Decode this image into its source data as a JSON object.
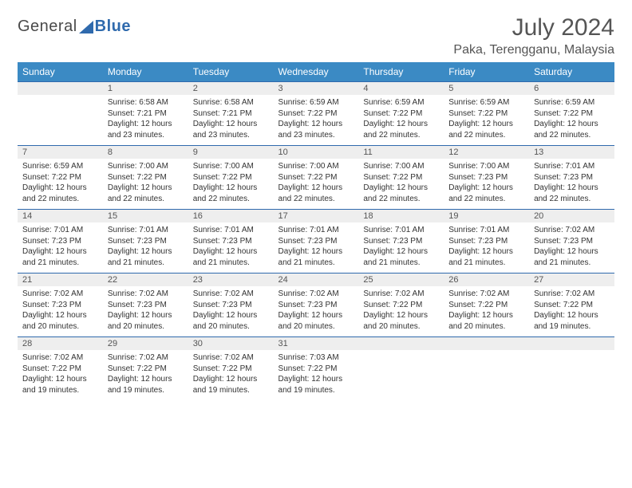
{
  "brand": {
    "part1": "General",
    "part2": "Blue"
  },
  "title": "July 2024",
  "location": "Paka, Terengganu, Malaysia",
  "colors": {
    "header_bg": "#3b8ac4",
    "row_separator": "#2f6aad",
    "daynum_bg": "#eeeeee",
    "text": "#333333",
    "title_text": "#555555"
  },
  "day_headers": [
    "Sunday",
    "Monday",
    "Tuesday",
    "Wednesday",
    "Thursday",
    "Friday",
    "Saturday"
  ],
  "weeks": [
    [
      null,
      {
        "n": "1",
        "sr": "6:58 AM",
        "ss": "7:21 PM",
        "dl": "12 hours and 23 minutes."
      },
      {
        "n": "2",
        "sr": "6:58 AM",
        "ss": "7:21 PM",
        "dl": "12 hours and 23 minutes."
      },
      {
        "n": "3",
        "sr": "6:59 AM",
        "ss": "7:22 PM",
        "dl": "12 hours and 23 minutes."
      },
      {
        "n": "4",
        "sr": "6:59 AM",
        "ss": "7:22 PM",
        "dl": "12 hours and 22 minutes."
      },
      {
        "n": "5",
        "sr": "6:59 AM",
        "ss": "7:22 PM",
        "dl": "12 hours and 22 minutes."
      },
      {
        "n": "6",
        "sr": "6:59 AM",
        "ss": "7:22 PM",
        "dl": "12 hours and 22 minutes."
      }
    ],
    [
      {
        "n": "7",
        "sr": "6:59 AM",
        "ss": "7:22 PM",
        "dl": "12 hours and 22 minutes."
      },
      {
        "n": "8",
        "sr": "7:00 AM",
        "ss": "7:22 PM",
        "dl": "12 hours and 22 minutes."
      },
      {
        "n": "9",
        "sr": "7:00 AM",
        "ss": "7:22 PM",
        "dl": "12 hours and 22 minutes."
      },
      {
        "n": "10",
        "sr": "7:00 AM",
        "ss": "7:22 PM",
        "dl": "12 hours and 22 minutes."
      },
      {
        "n": "11",
        "sr": "7:00 AM",
        "ss": "7:22 PM",
        "dl": "12 hours and 22 minutes."
      },
      {
        "n": "12",
        "sr": "7:00 AM",
        "ss": "7:23 PM",
        "dl": "12 hours and 22 minutes."
      },
      {
        "n": "13",
        "sr": "7:01 AM",
        "ss": "7:23 PM",
        "dl": "12 hours and 22 minutes."
      }
    ],
    [
      {
        "n": "14",
        "sr": "7:01 AM",
        "ss": "7:23 PM",
        "dl": "12 hours and 21 minutes."
      },
      {
        "n": "15",
        "sr": "7:01 AM",
        "ss": "7:23 PM",
        "dl": "12 hours and 21 minutes."
      },
      {
        "n": "16",
        "sr": "7:01 AM",
        "ss": "7:23 PM",
        "dl": "12 hours and 21 minutes."
      },
      {
        "n": "17",
        "sr": "7:01 AM",
        "ss": "7:23 PM",
        "dl": "12 hours and 21 minutes."
      },
      {
        "n": "18",
        "sr": "7:01 AM",
        "ss": "7:23 PM",
        "dl": "12 hours and 21 minutes."
      },
      {
        "n": "19",
        "sr": "7:01 AM",
        "ss": "7:23 PM",
        "dl": "12 hours and 21 minutes."
      },
      {
        "n": "20",
        "sr": "7:02 AM",
        "ss": "7:23 PM",
        "dl": "12 hours and 21 minutes."
      }
    ],
    [
      {
        "n": "21",
        "sr": "7:02 AM",
        "ss": "7:23 PM",
        "dl": "12 hours and 20 minutes."
      },
      {
        "n": "22",
        "sr": "7:02 AM",
        "ss": "7:23 PM",
        "dl": "12 hours and 20 minutes."
      },
      {
        "n": "23",
        "sr": "7:02 AM",
        "ss": "7:23 PM",
        "dl": "12 hours and 20 minutes."
      },
      {
        "n": "24",
        "sr": "7:02 AM",
        "ss": "7:23 PM",
        "dl": "12 hours and 20 minutes."
      },
      {
        "n": "25",
        "sr": "7:02 AM",
        "ss": "7:22 PM",
        "dl": "12 hours and 20 minutes."
      },
      {
        "n": "26",
        "sr": "7:02 AM",
        "ss": "7:22 PM",
        "dl": "12 hours and 20 minutes."
      },
      {
        "n": "27",
        "sr": "7:02 AM",
        "ss": "7:22 PM",
        "dl": "12 hours and 19 minutes."
      }
    ],
    [
      {
        "n": "28",
        "sr": "7:02 AM",
        "ss": "7:22 PM",
        "dl": "12 hours and 19 minutes."
      },
      {
        "n": "29",
        "sr": "7:02 AM",
        "ss": "7:22 PM",
        "dl": "12 hours and 19 minutes."
      },
      {
        "n": "30",
        "sr": "7:02 AM",
        "ss": "7:22 PM",
        "dl": "12 hours and 19 minutes."
      },
      {
        "n": "31",
        "sr": "7:03 AM",
        "ss": "7:22 PM",
        "dl": "12 hours and 19 minutes."
      },
      null,
      null,
      null
    ]
  ],
  "labels": {
    "sunrise": "Sunrise: ",
    "sunset": "Sunset: ",
    "daylight": "Daylight: "
  }
}
